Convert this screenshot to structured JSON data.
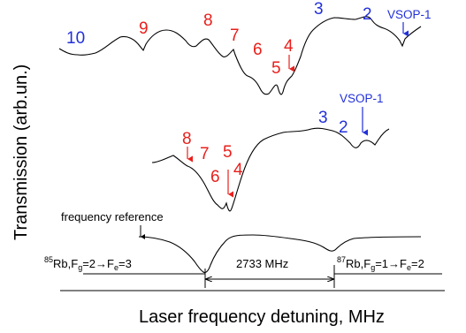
{
  "chart_data": {
    "type": "line",
    "xlabel": "Laser frequency detuning, MHz",
    "ylabel": "Transmission (arb.un.)",
    "grid": false,
    "legend": "none",
    "series": [],
    "colors": {
      "red_labels": "#e8201c",
      "blue_labels": "#2230d8",
      "traces": "#000000"
    },
    "upper_trace_labels": {
      "red": [
        "9",
        "8",
        "7",
        "6",
        "5",
        "4"
      ],
      "blue": [
        "10",
        "3",
        "2"
      ],
      "vsop": "VSOP-1"
    },
    "middle_trace_labels": {
      "red": [
        "8",
        "7",
        "6",
        "5",
        "4"
      ],
      "blue": [
        "3",
        "2"
      ],
      "vsop": "VSOP-1"
    },
    "reference": {
      "title": "frequency reference",
      "left_line": {
        "sup": "85",
        "text": "Rb,F",
        "sub1": "g",
        "mid": "=2",
        "arrow": "→",
        "text2": "F",
        "sub2": "e",
        "end": "=3"
      },
      "right_line": {
        "sup": "87",
        "text": "Rb,F",
        "sub1": "g",
        "mid": "=1",
        "arrow": "→",
        "text2": "F",
        "sub2": "e",
        "end": "=2"
      },
      "span_label": "2733 MHz"
    }
  }
}
